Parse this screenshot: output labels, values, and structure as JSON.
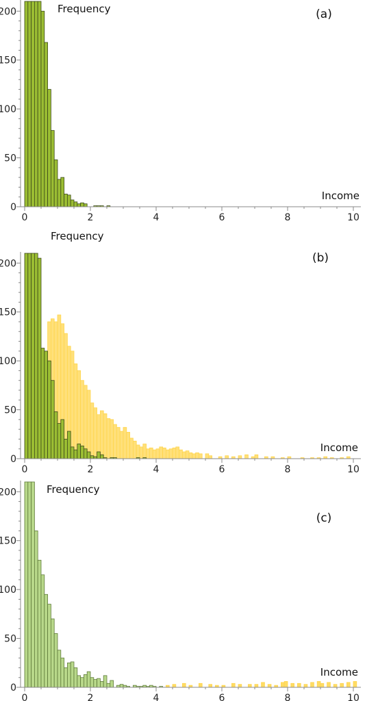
{
  "chart_data": [
    {
      "type": "bar",
      "panel_label": "(a)",
      "xlabel": "Income",
      "ylabel": "Frequency",
      "xlim": [
        -0.1,
        10.2
      ],
      "ylim": [
        0,
        210
      ],
      "xticks": [
        0,
        2,
        4,
        6,
        8,
        10
      ],
      "yticks": [
        0,
        50,
        100,
        150,
        200
      ],
      "bin_width": 0.1,
      "series": [
        {
          "color": "#9bbd33",
          "edge": "#3d4a1c",
          "bin_starts": [
            0.0,
            0.1,
            0.2,
            0.3,
            0.4,
            0.5,
            0.6,
            0.7,
            0.8,
            0.9,
            1.0,
            1.1,
            1.2,
            1.3,
            1.4,
            1.5,
            1.6,
            1.7,
            1.8,
            2.1,
            2.2,
            2.3,
            2.5
          ],
          "values": [
            210,
            210,
            210,
            210,
            210,
            200,
            168,
            120,
            78,
            48,
            28,
            30,
            13,
            12,
            7,
            5,
            3,
            4,
            3,
            1,
            1,
            1,
            1
          ]
        }
      ]
    },
    {
      "type": "bar",
      "panel_label": "(b)",
      "xlabel": "Income",
      "ylabel": "Frequency",
      "xlim": [
        -0.1,
        10.2
      ],
      "ylim": [
        0,
        210
      ],
      "xticks": [
        0,
        2,
        4,
        6,
        8,
        10
      ],
      "yticks": [
        0,
        50,
        100,
        150,
        200
      ],
      "bin_width": 0.1,
      "series": [
        {
          "color": "#ffe07a",
          "edge": "#ffd54d",
          "bin_starts": [
            0.7,
            0.8,
            0.9,
            1.0,
            1.1,
            1.2,
            1.3,
            1.4,
            1.5,
            1.6,
            1.7,
            1.8,
            1.9,
            2.0,
            2.1,
            2.2,
            2.3,
            2.4,
            2.5,
            2.6,
            2.7,
            2.8,
            2.9,
            3.0,
            3.1,
            3.2,
            3.3,
            3.4,
            3.5,
            3.6,
            3.7,
            3.8,
            3.9,
            4.0,
            4.1,
            4.2,
            4.3,
            4.4,
            4.5,
            4.6,
            4.7,
            4.8,
            4.9,
            5.0,
            5.1,
            5.2,
            5.3,
            5.5,
            5.6,
            5.9,
            6.1,
            6.3,
            6.5,
            6.7,
            6.9,
            7.0,
            7.3,
            7.5,
            7.8,
            8.0,
            8.4,
            8.7,
            8.9,
            9.1,
            9.3,
            9.6,
            9.8
          ],
          "values": [
            140,
            143,
            140,
            147,
            138,
            128,
            115,
            110,
            97,
            90,
            80,
            75,
            70,
            57,
            52,
            45,
            49,
            46,
            41,
            40,
            35,
            32,
            28,
            32,
            27,
            21,
            18,
            14,
            12,
            15,
            10,
            11,
            9,
            10,
            12,
            11,
            9,
            10,
            11,
            12,
            9,
            7,
            8,
            6,
            5,
            6,
            5,
            5,
            3,
            2,
            3,
            2,
            3,
            4,
            2,
            4,
            2,
            2,
            1,
            2,
            1,
            1,
            1,
            2,
            1,
            1,
            2
          ]
        },
        {
          "color": "#9bbd33",
          "edge": "#3d4a1c",
          "bin_starts": [
            0.0,
            0.1,
            0.2,
            0.3,
            0.4,
            0.5,
            0.6,
            0.7,
            0.8,
            0.9,
            1.0,
            1.1,
            1.2,
            1.3,
            1.4,
            1.5,
            1.6,
            1.7,
            1.8,
            1.9,
            2.0,
            2.1,
            2.2,
            2.3,
            2.4,
            2.6,
            2.7,
            3.4,
            3.6
          ],
          "values": [
            210,
            210,
            210,
            210,
            205,
            113,
            110,
            100,
            80,
            48,
            36,
            40,
            20,
            28,
            12,
            9,
            15,
            13,
            10,
            7,
            3,
            2,
            7,
            4,
            1,
            1,
            1,
            1,
            1
          ]
        }
      ]
    },
    {
      "type": "bar",
      "panel_label": "(c)",
      "xlabel": "Income",
      "ylabel": "Frequency",
      "xlim": [
        -0.1,
        10.2
      ],
      "ylim": [
        0,
        210
      ],
      "xticks": [
        0,
        2,
        4,
        6,
        8,
        10
      ],
      "yticks": [
        0,
        50,
        100,
        150,
        200
      ],
      "bin_width": 0.1,
      "series": [
        {
          "color": "#b8d88a",
          "edge": "#5f7a3a",
          "bin_starts": [
            0.0,
            0.1,
            0.2,
            0.3,
            0.4,
            0.5,
            0.6,
            0.7,
            0.8,
            0.9,
            1.0,
            1.1,
            1.2,
            1.3,
            1.4,
            1.5,
            1.6,
            1.7,
            1.8,
            1.9,
            2.0,
            2.1,
            2.2,
            2.3,
            2.4,
            2.5,
            2.6,
            2.8,
            2.9,
            3.0,
            3.1,
            3.3,
            3.4,
            3.5,
            3.6,
            3.7,
            3.8,
            3.9,
            4.1
          ],
          "values": [
            210,
            210,
            210,
            160,
            130,
            115,
            95,
            85,
            70,
            55,
            38,
            30,
            20,
            25,
            26,
            20,
            12,
            10,
            13,
            16,
            10,
            8,
            9,
            6,
            12,
            4,
            7,
            2,
            3,
            2,
            1,
            2,
            1,
            1,
            2,
            1,
            2,
            1,
            1
          ]
        },
        {
          "color": "#ffdc64",
          "edge": "#ffd54d",
          "bin_starts": [
            4.3,
            4.5,
            4.8,
            5.0,
            5.3,
            5.6,
            5.8,
            6.0,
            6.3,
            6.5,
            6.8,
            7.0,
            7.2,
            7.4,
            7.6,
            7.8,
            7.9,
            8.1,
            8.3,
            8.5,
            8.7,
            8.9,
            9.0,
            9.2,
            9.4,
            9.6,
            9.8,
            10.0
          ],
          "values": [
            2,
            3,
            4,
            2,
            4,
            3,
            2,
            2,
            4,
            3,
            3,
            3,
            5,
            3,
            2,
            5,
            6,
            4,
            4,
            3,
            5,
            6,
            4,
            5,
            3,
            4,
            5,
            6
          ]
        }
      ]
    }
  ]
}
